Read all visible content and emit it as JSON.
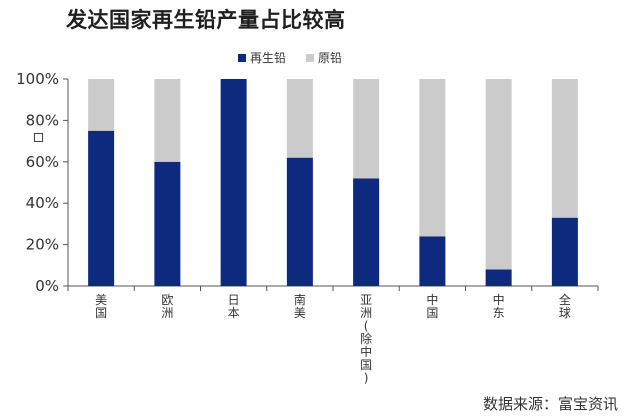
{
  "chart_data": {
    "type": "bar",
    "stacked": true,
    "normalized": true,
    "title": "发达国家再生铅产量占比较高",
    "categories": [
      "美国",
      "欧洲",
      "日本",
      "南美",
      "亚洲（除中国）",
      "中国",
      "中东",
      "全球"
    ],
    "category_label_chars": [
      [
        "美",
        "国"
      ],
      [
        "欧",
        "洲"
      ],
      [
        "日",
        "本"
      ],
      [
        "南",
        "美"
      ],
      [
        "亚",
        "洲",
        "(",
        "除",
        "中",
        "国",
        ")"
      ],
      [
        "中",
        "国"
      ],
      [
        "中",
        "东"
      ],
      [
        "全",
        "球"
      ]
    ],
    "series": [
      {
        "name": "再生铅",
        "color": "#0d2a7e",
        "values": [
          75,
          60,
          100,
          62,
          52,
          24,
          8,
          33
        ]
      },
      {
        "name": "原铅",
        "color": "#cbcbcb",
        "values": [
          25,
          40,
          0,
          38,
          48,
          76,
          92,
          67
        ]
      }
    ],
    "y_ticks": [
      "0%",
      "20%",
      "40%",
      "60%",
      "80%",
      "100%"
    ],
    "ylim": [
      0,
      100
    ],
    "grid": false,
    "legend_position": "top-center"
  },
  "source_text": "数据来源：富宝资讯"
}
